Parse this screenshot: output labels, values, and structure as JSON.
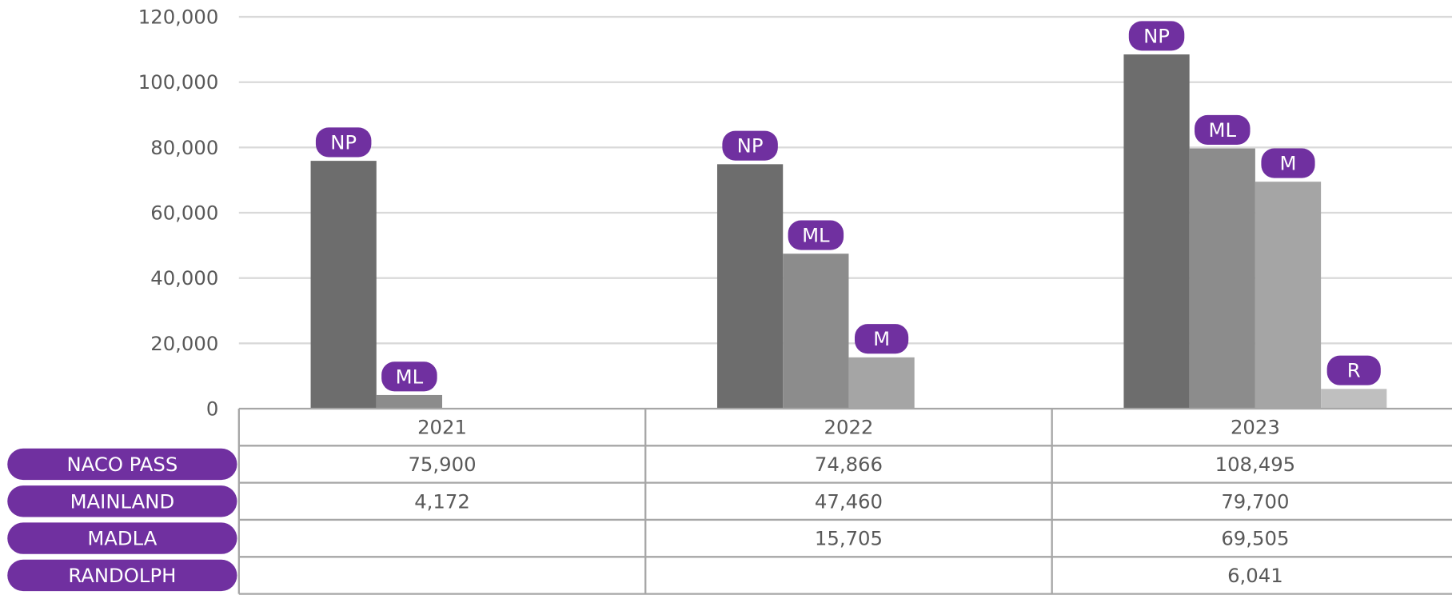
{
  "chart_data": {
    "type": "bar",
    "categories": [
      "2021",
      "2022",
      "2023"
    ],
    "series": [
      {
        "name": "NACO PASS",
        "abbr": "NP",
        "color": "#6d6d6d",
        "values": [
          75900,
          74866,
          108495
        ],
        "value_labels": [
          "75,900",
          "74,866",
          "108,495"
        ]
      },
      {
        "name": "MAINLAND",
        "abbr": "ML",
        "color": "#8c8c8c",
        "values": [
          4172,
          47460,
          79700
        ],
        "value_labels": [
          "4,172",
          "47,460",
          "79,700"
        ]
      },
      {
        "name": "MADLA",
        "abbr": "M",
        "color": "#a5a5a5",
        "values": [
          null,
          15705,
          69505
        ],
        "value_labels": [
          null,
          "15,705",
          "69,505"
        ]
      },
      {
        "name": "RANDOLPH",
        "abbr": "R",
        "color": "#bfbfbf",
        "values": [
          null,
          null,
          6041
        ],
        "value_labels": [
          null,
          null,
          "6,041"
        ]
      }
    ],
    "ylim": [
      0,
      120000
    ],
    "yticks": [
      0,
      {
        "value": 20000,
        "label": "20,000"
      },
      {
        "value": 40000,
        "label": "40,000"
      },
      {
        "value": 60000,
        "label": "60,000"
      },
      {
        "value": 80000,
        "label": "80,000"
      },
      {
        "value": 100000,
        "label": "100,000"
      },
      {
        "value": 120000,
        "label": "120,000"
      }
    ],
    "grid": true,
    "label_color": "#7030a0"
  }
}
